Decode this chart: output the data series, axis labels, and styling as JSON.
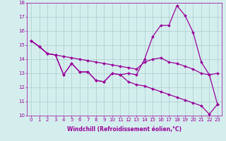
{
  "xlabel": "Windchill (Refroidissement éolien,°C)",
  "ylabel": "",
  "x": [
    0,
    1,
    2,
    3,
    4,
    5,
    6,
    7,
    8,
    9,
    10,
    11,
    12,
    13,
    14,
    15,
    16,
    17,
    18,
    19,
    20,
    21,
    22,
    23
  ],
  "line1": [
    15.3,
    14.9,
    14.4,
    14.3,
    14.2,
    14.1,
    14.0,
    13.9,
    13.8,
    13.7,
    13.6,
    13.5,
    13.4,
    13.3,
    13.8,
    14.0,
    14.1,
    13.8,
    13.7,
    13.5,
    13.3,
    13.0,
    12.9,
    13.0
  ],
  "line2": [
    15.3,
    14.9,
    14.4,
    14.3,
    12.9,
    13.7,
    13.1,
    13.1,
    12.5,
    12.4,
    13.0,
    12.9,
    13.0,
    12.9,
    14.0,
    15.6,
    16.4,
    16.4,
    17.8,
    17.1,
    15.9,
    13.8,
    12.9,
    10.8
  ],
  "line3": [
    15.3,
    14.9,
    14.4,
    14.3,
    12.9,
    13.7,
    13.1,
    13.1,
    12.5,
    12.4,
    13.0,
    12.9,
    12.4,
    12.2,
    12.1,
    11.9,
    11.7,
    11.5,
    11.3,
    11.1,
    10.9,
    10.7,
    10.1,
    10.8
  ],
  "ylim": [
    10,
    18
  ],
  "xlim": [
    -0.5,
    23.5
  ],
  "yticks": [
    10,
    11,
    12,
    13,
    14,
    15,
    16,
    17,
    18
  ],
  "xticks": [
    0,
    1,
    2,
    3,
    4,
    5,
    6,
    7,
    8,
    9,
    10,
    11,
    12,
    13,
    14,
    15,
    16,
    17,
    18,
    19,
    20,
    21,
    22,
    23
  ],
  "line_color": "#990099",
  "bg_color": "#d4eeee",
  "grid_color": "#aacccc",
  "marker": "D",
  "marker_size": 2,
  "line_width": 0.9,
  "label_fontsize": 5.5,
  "tick_fontsize": 5.0
}
